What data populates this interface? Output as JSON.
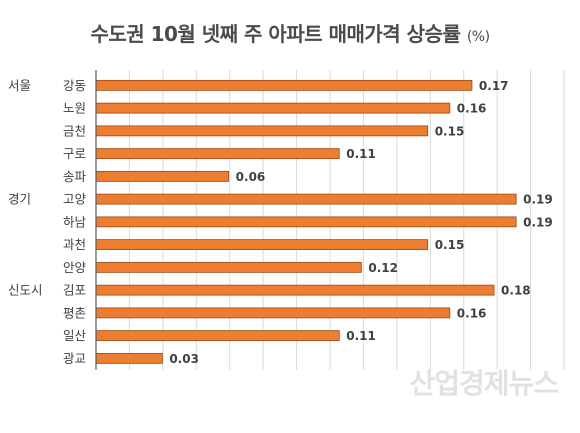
{
  "title": "수도권 10월 넷째 주 아파트 매매가격 상승률",
  "unit": "(%)",
  "watermark": "산업경제뉴스",
  "colors": {
    "bar": "#ED7D31",
    "bar_stroke": "#9c4a14",
    "grid": "#d9d9d9",
    "axis": "#595959",
    "text": "#404040"
  },
  "chart_data": {
    "type": "bar",
    "orientation": "horizontal",
    "title": "수도권 10월 넷째 주 아파트 매매가격 상승률",
    "unit": "(%)",
    "groups": [
      {
        "label": "서울",
        "start": 0
      },
      {
        "label": "경기",
        "start": 5
      },
      {
        "label": "신도시",
        "start": 9
      }
    ],
    "categories": [
      "강동",
      "노원",
      "금천",
      "구로",
      "송파",
      "고양",
      "하남",
      "과천",
      "안양",
      "김포",
      "평촌",
      "일산",
      "광교"
    ],
    "values": [
      0.17,
      0.16,
      0.15,
      0.11,
      0.06,
      0.19,
      0.19,
      0.15,
      0.12,
      0.18,
      0.16,
      0.11,
      0.03
    ],
    "data_labels": [
      "0.17",
      "0.16",
      "0.15",
      "0.11",
      "0.06",
      "0.19",
      "0.19",
      "0.15",
      "0.12",
      "0.18",
      "0.16",
      "0.11",
      "0.03"
    ],
    "xlim": [
      0,
      0.2
    ],
    "grid": true,
    "legend": "none"
  }
}
